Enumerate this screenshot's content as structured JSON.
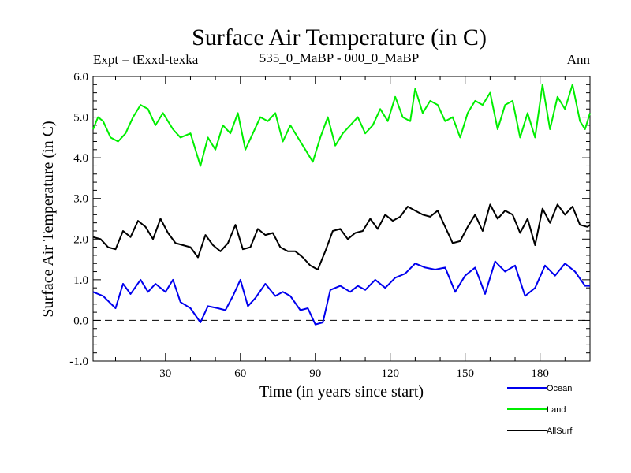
{
  "chart_data": {
    "type": "line",
    "title": "Surface Air Temperature (in C)",
    "subtitle_left": "Expt = tExxd-texka",
    "subtitle_center": "535_0_MaBP - 000_0_MaBP",
    "subtitle_right": "Ann",
    "xlabel": "Time (in years since start)",
    "ylabel": "Surface Air Temperature (in C)",
    "xlim": [
      1,
      200
    ],
    "ylim": [
      -1.0,
      6.0
    ],
    "xticks": [
      30,
      60,
      90,
      120,
      150,
      180
    ],
    "xtick_labels": [
      "30",
      "60",
      "90",
      "120",
      "150",
      "180"
    ],
    "yticks": [
      -1.0,
      0.0,
      1.0,
      2.0,
      3.0,
      4.0,
      5.0,
      6.0
    ],
    "ytick_labels": [
      "-1.0",
      "0.0",
      "1.0",
      "2.0",
      "3.0",
      "4.0",
      "5.0",
      "6.0"
    ],
    "reference_line": 0.0,
    "series": [
      {
        "name": "Ocean",
        "color": "#0000ee",
        "x": [
          1,
          5,
          10,
          13,
          16,
          20,
          23,
          26,
          30,
          33,
          36,
          40,
          44,
          47,
          51,
          54,
          57,
          60,
          63,
          66,
          70,
          74,
          77,
          80,
          84,
          87,
          90,
          93,
          96,
          100,
          104,
          107,
          110,
          114,
          118,
          122,
          126,
          130,
          134,
          138,
          142,
          146,
          150,
          154,
          158,
          162,
          166,
          170,
          174,
          178,
          182,
          186,
          190,
          194,
          198,
          200
        ],
        "values": [
          0.7,
          0.6,
          0.3,
          0.9,
          0.65,
          1.0,
          0.7,
          0.9,
          0.7,
          1.0,
          0.45,
          0.3,
          -0.05,
          0.35,
          0.3,
          0.25,
          0.6,
          1.0,
          0.35,
          0.55,
          0.9,
          0.6,
          0.7,
          0.6,
          0.25,
          0.3,
          -0.1,
          -0.05,
          0.75,
          0.85,
          0.7,
          0.85,
          0.75,
          1.0,
          0.8,
          1.05,
          1.15,
          1.4,
          1.3,
          1.25,
          1.3,
          0.7,
          1.1,
          1.3,
          0.65,
          1.45,
          1.2,
          1.35,
          0.6,
          0.8,
          1.35,
          1.1,
          1.4,
          1.2,
          0.85,
          0.85
        ]
      },
      {
        "name": "Land",
        "color": "#00ee00",
        "x": [
          1,
          3,
          5,
          8,
          11,
          14,
          17,
          20,
          23,
          26,
          29,
          33,
          36,
          40,
          44,
          47,
          50,
          53,
          56,
          59,
          62,
          65,
          68,
          71,
          74,
          77,
          80,
          83,
          86,
          89,
          92,
          95,
          98,
          101,
          104,
          107,
          110,
          113,
          116,
          119,
          122,
          125,
          128,
          130,
          133,
          136,
          139,
          142,
          145,
          148,
          151,
          154,
          157,
          160,
          163,
          166,
          169,
          172,
          175,
          178,
          181,
          184,
          187,
          190,
          193,
          196,
          198,
          200
        ],
        "values": [
          4.7,
          5.0,
          4.9,
          4.5,
          4.4,
          4.6,
          5.0,
          5.3,
          5.2,
          4.8,
          5.1,
          4.7,
          4.5,
          4.6,
          3.8,
          4.5,
          4.2,
          4.8,
          4.6,
          5.1,
          4.2,
          4.6,
          5.0,
          4.9,
          5.1,
          4.4,
          4.8,
          4.5,
          4.2,
          3.9,
          4.5,
          5.0,
          4.3,
          4.6,
          4.8,
          5.0,
          4.6,
          4.8,
          5.2,
          4.9,
          5.5,
          5.0,
          4.9,
          5.7,
          5.1,
          5.4,
          5.3,
          4.9,
          5.0,
          4.5,
          5.1,
          5.4,
          5.3,
          5.6,
          4.7,
          5.3,
          5.4,
          4.5,
          5.1,
          4.5,
          5.8,
          4.7,
          5.5,
          5.2,
          5.8,
          4.9,
          4.7,
          5.1
        ]
      },
      {
        "name": "AllSurf",
        "color": "#000000",
        "x": [
          1,
          4,
          7,
          10,
          13,
          16,
          19,
          22,
          25,
          28,
          31,
          34,
          37,
          40,
          43,
          46,
          49,
          52,
          55,
          58,
          61,
          64,
          67,
          70,
          73,
          76,
          79,
          82,
          85,
          88,
          91,
          94,
          97,
          100,
          103,
          106,
          109,
          112,
          115,
          118,
          121,
          124,
          127,
          130,
          133,
          136,
          139,
          142,
          145,
          148,
          151,
          154,
          157,
          160,
          163,
          166,
          169,
          172,
          175,
          178,
          181,
          184,
          187,
          190,
          193,
          196,
          199,
          200
        ],
        "values": [
          2.05,
          2.0,
          1.8,
          1.75,
          2.2,
          2.05,
          2.45,
          2.3,
          2.0,
          2.5,
          2.15,
          1.9,
          1.85,
          1.8,
          1.55,
          2.1,
          1.85,
          1.7,
          1.9,
          2.35,
          1.75,
          1.8,
          2.25,
          2.1,
          2.15,
          1.8,
          1.7,
          1.7,
          1.55,
          1.35,
          1.25,
          1.7,
          2.2,
          2.25,
          2.0,
          2.15,
          2.2,
          2.5,
          2.25,
          2.6,
          2.45,
          2.55,
          2.8,
          2.7,
          2.6,
          2.55,
          2.7,
          2.3,
          1.9,
          1.95,
          2.3,
          2.6,
          2.2,
          2.85,
          2.5,
          2.7,
          2.6,
          2.15,
          2.5,
          1.85,
          2.75,
          2.4,
          2.85,
          2.6,
          2.8,
          2.35,
          2.3,
          2.35
        ]
      }
    ],
    "legend": [
      {
        "label": "Ocean",
        "color": "#0000ee"
      },
      {
        "label": "Land",
        "color": "#00ee00"
      },
      {
        "label": "AllSurf",
        "color": "#000000"
      }
    ]
  }
}
